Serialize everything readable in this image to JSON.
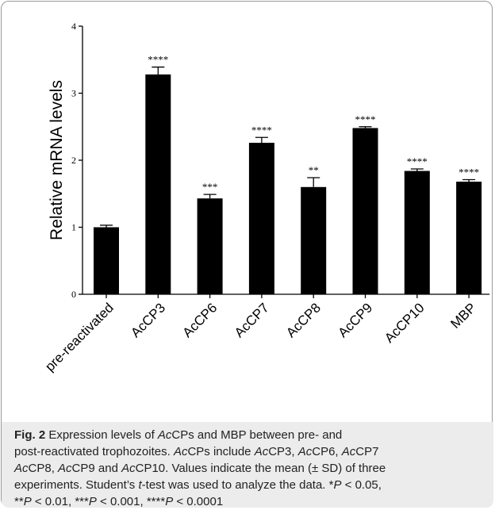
{
  "chart_data": {
    "type": "bar",
    "ylabel": "Relative mRNA levels",
    "xlabel": "",
    "ylim": [
      0,
      4
    ],
    "yticks": [
      0,
      1,
      2,
      3,
      4
    ],
    "categories": [
      "pre-reactivated",
      "AcCP3",
      "AcCP6",
      "AcCP7",
      "AcCP8",
      "AcCP9",
      "AcCP10",
      "MBP"
    ],
    "values": [
      1.0,
      3.28,
      1.43,
      2.26,
      1.6,
      2.48,
      1.84,
      1.68
    ],
    "errors": [
      0.03,
      0.11,
      0.06,
      0.08,
      0.14,
      0.02,
      0.03,
      0.03
    ],
    "significance": [
      "",
      "****",
      "***",
      "****",
      "**",
      "****",
      "****",
      "****"
    ],
    "bar_color": "#000000"
  },
  "caption": {
    "fig_label": "Fig. 2",
    "line1_a": "  Expression levels of ",
    "ac": "Ac",
    "line1_b": "CPs and MBP between pre- and",
    "line2_a": "post-reactivated trophozoites. ",
    "line2_b": "CPs include ",
    "cp3": "CP3, ",
    "cp6": "CP6, ",
    "cp7": "CP7",
    "line3_a": "",
    "cp8": "CP8, ",
    "cp9": "CP9 and ",
    "cp10": "CP10. Values indicate the mean (± SD) of three",
    "line4": "experiments. Student’s ",
    "t": "t",
    "line4_b": "-test was used to analyze the data. *",
    "p": "P",
    "p05": " < 0.05,",
    "line5_a": "**",
    "p01": " < 0.01, ***",
    "p001": " < 0.001, ****",
    "p0001": " < 0.0001"
  }
}
